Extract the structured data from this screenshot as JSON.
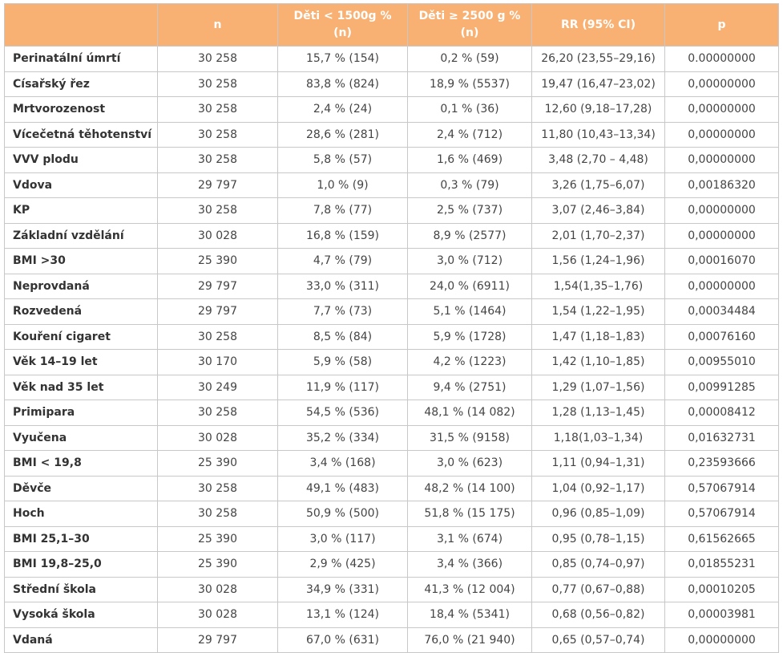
{
  "table": {
    "headers": [
      "",
      "n",
      "Děti < 1500g % (n)",
      "Děti ≥ 2500 g % (n)",
      "RR (95% CI)",
      "p"
    ],
    "rows": [
      [
        "Perinatální úmrtí",
        "30 258",
        "15,7 % (154)",
        "0,2 % (59)",
        "26,20 (23,55–29,16)",
        "0.00000000"
      ],
      [
        "Císařský řez",
        "30 258",
        "83,8 % (824)",
        "18,9 % (5537)",
        "19,47 (16,47–23,02)",
        "0,00000000"
      ],
      [
        "Mrtvorozenost",
        "30 258",
        "2,4 % (24)",
        "0,1 % (36)",
        "12,60 (9,18–17,28)",
        "0,00000000"
      ],
      [
        "Vícečetná těhotenství",
        "30 258",
        "28,6 % (281)",
        "2,4 % (712)",
        "11,80 (10,43–13,34)",
        "0,00000000"
      ],
      [
        "VVV plodu",
        "30 258",
        "5,8 % (57)",
        "1,6 % (469)",
        "3,48 (2,70 – 4,48)",
        "0,00000000"
      ],
      [
        "Vdova",
        "29 797",
        "1,0 % (9)",
        "0,3 % (79)",
        "3,26 (1,75–6,07)",
        "0,00186320"
      ],
      [
        "KP",
        "30 258",
        "7,8 % (77)",
        "2,5 % (737)",
        "3,07 (2,46–3,84)",
        "0,00000000"
      ],
      [
        "Základní vzdělání",
        "30 028",
        "16,8 % (159)",
        "8,9 % (2577)",
        "2,01 (1,70–2,37)",
        "0,00000000"
      ],
      [
        "BMI >30",
        "25 390",
        "4,7 % (79)",
        "3,0 % (712)",
        "1,56 (1,24–1,96)",
        "0,00016070"
      ],
      [
        "Neprovdaná",
        "29 797",
        "33,0 % (311)",
        "24,0 % (6911)",
        "1,54(1,35–1,76)",
        "0,00000000"
      ],
      [
        "Rozvedená",
        "29 797",
        "7,7 % (73)",
        "5,1 % (1464)",
        "1,54 (1,22–1,95)",
        "0,00034484"
      ],
      [
        "Kouření cigaret",
        "30 258",
        "8,5 % (84)",
        "5,9 % (1728)",
        "1,47 (1,18–1,83)",
        "0,00076160"
      ],
      [
        "Věk 14–19 let",
        "30 170",
        "5,9 % (58)",
        "4,2 % (1223)",
        "1,42 (1,10–1,85)",
        "0,00955010"
      ],
      [
        "Věk nad 35 let",
        "30 249",
        "11,9 % (117)",
        "9,4 % (2751)",
        "1,29 (1,07–1,56)",
        "0,00991285"
      ],
      [
        "Primipara",
        "30 258",
        "54,5 % (536)",
        "48,1 % (14 082)",
        "1,28 (1,13–1,45)",
        "0,00008412"
      ],
      [
        "Vyučena",
        "30 028",
        "35,2 % (334)",
        "31,5 % (9158)",
        "1,18(1,03–1,34)",
        "0,01632731"
      ],
      [
        "BMI < 19,8",
        "25 390",
        "3,4 % (168)",
        "3,0 % (623)",
        "1,11 (0,94–1,31)",
        "0,23593666"
      ],
      [
        "Děvče",
        "30 258",
        "49,1 % (483)",
        "48,2 % (14 100)",
        "1,04 (0,92–1,17)",
        "0,57067914"
      ],
      [
        "Hoch",
        "30 258",
        "50,9 % (500)",
        "51,8 % (15 175)",
        "0,96 (0,85–1,09)",
        "0,57067914"
      ],
      [
        "BMI 25,1–30",
        "25 390",
        "3,0 % (117)",
        "3,1 % (674)",
        "0,95 (0,78–1,15)",
        "0,61562665"
      ],
      [
        "BMI 19,8–25,0",
        "25 390",
        "2,9 % (425)",
        "3,4 % (366)",
        "0,85 (0,74–0,97)",
        "0,01855231"
      ],
      [
        "Střední škola",
        "30 028",
        "34,9 % (331)",
        "41,3 % (12 004)",
        "0,77 (0,67–0,88)",
        "0,00010205"
      ],
      [
        "Vysoká škola",
        "30 028",
        "13,1 % (124)",
        "18,4 % (5341)",
        "0,68 (0,56–0,82)",
        "0,00003981"
      ],
      [
        "Vdaná",
        "29 797",
        "67,0 % (631)",
        "76,0 % (21 940)",
        "0,65 (0,57–0,74)",
        "0,00000000"
      ]
    ]
  }
}
